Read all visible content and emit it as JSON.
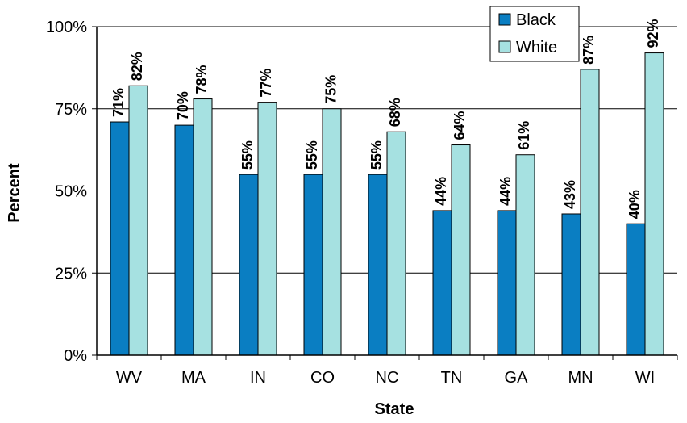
{
  "chart_data": {
    "type": "bar",
    "xlabel": "State",
    "ylabel": "Percent",
    "ylim": [
      0,
      100
    ],
    "yticks": [
      "0%",
      "25%",
      "50%",
      "75%",
      "100%"
    ],
    "categories": [
      "WV",
      "MA",
      "IN",
      "CO",
      "NC",
      "TN",
      "GA",
      "MN",
      "WI"
    ],
    "series": [
      {
        "name": "Black",
        "values": [
          71,
          70,
          55,
          55,
          55,
          44,
          44,
          43,
          40
        ],
        "labels": [
          "71%",
          "70%",
          "55%",
          "55%",
          "55%",
          "44%",
          "44%",
          "43%",
          "40%"
        ],
        "color": "#0A7EC2"
      },
      {
        "name": "White",
        "values": [
          82,
          78,
          77,
          75,
          68,
          64,
          61,
          87,
          92
        ],
        "labels": [
          "82%",
          "78%",
          "77%",
          "75%",
          "68%",
          "64%",
          "61%",
          "87%",
          "92%"
        ],
        "color": "#A6E1E1"
      }
    ],
    "grid": true,
    "legend_position": "top-right"
  }
}
